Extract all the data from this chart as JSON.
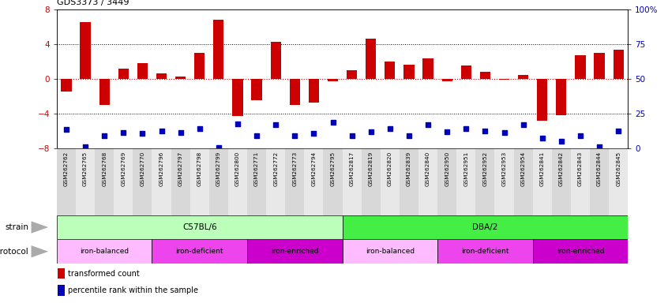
{
  "title": "GDS3373 / 3449",
  "samples": [
    "GSM262762",
    "GSM262765",
    "GSM262768",
    "GSM262769",
    "GSM262770",
    "GSM262796",
    "GSM262797",
    "GSM262798",
    "GSM262799",
    "GSM262800",
    "GSM262771",
    "GSM262772",
    "GSM262773",
    "GSM262794",
    "GSM262795",
    "GSM262817",
    "GSM262819",
    "GSM262820",
    "GSM262839",
    "GSM262840",
    "GSM262950",
    "GSM262951",
    "GSM262952",
    "GSM262953",
    "GSM262954",
    "GSM262841",
    "GSM262842",
    "GSM262843",
    "GSM262844",
    "GSM262845"
  ],
  "bar_values": [
    -1.5,
    6.5,
    -3.0,
    1.2,
    1.8,
    0.6,
    0.3,
    3.0,
    6.8,
    -4.3,
    -2.5,
    4.2,
    -3.0,
    -2.7,
    -0.3,
    1.0,
    4.6,
    2.0,
    1.6,
    2.3,
    -0.3,
    1.5,
    0.8,
    -0.1,
    0.4,
    -4.8,
    -4.2,
    2.7,
    3.0,
    3.3
  ],
  "percentile_y": [
    -5.8,
    -7.8,
    -6.5,
    -6.2,
    -6.3,
    -6.0,
    -6.2,
    -5.7,
    -7.9,
    -5.2,
    -6.5,
    -5.3,
    -6.5,
    -6.3,
    -5.0,
    -6.5,
    -6.1,
    -5.7,
    -6.5,
    -5.3,
    -6.1,
    -5.7,
    -6.0,
    -6.2,
    -5.3,
    -6.8,
    -7.2,
    -6.5,
    -7.8,
    -6.0
  ],
  "bar_color": "#cc0000",
  "dot_color": "#0000bb",
  "ylim": [
    -8,
    8
  ],
  "yticks_left": [
    -8,
    -4,
    0,
    4,
    8
  ],
  "yticks_right_pos": [
    -8,
    -4,
    0,
    4,
    8
  ],
  "yticks_right_labels": [
    "0",
    "25",
    "50",
    "75",
    "100%"
  ],
  "hlines_black": [
    -4,
    4
  ],
  "hline_red": 0,
  "strain_groups": [
    {
      "label": "C57BL/6",
      "start": 0,
      "end": 15,
      "color": "#bbffbb"
    },
    {
      "label": "DBA/2",
      "start": 15,
      "end": 30,
      "color": "#44ee44"
    }
  ],
  "protocol_groups": [
    {
      "label": "iron-balanced",
      "start": 0,
      "end": 5,
      "color": "#ffbbff"
    },
    {
      "label": "iron-deficient",
      "start": 5,
      "end": 10,
      "color": "#ee44ee"
    },
    {
      "label": "iron-enriched",
      "start": 10,
      "end": 15,
      "color": "#cc00cc"
    },
    {
      "label": "iron-balanced",
      "start": 15,
      "end": 20,
      "color": "#ffbbff"
    },
    {
      "label": "iron-deficient",
      "start": 20,
      "end": 25,
      "color": "#ee44ee"
    },
    {
      "label": "iron-enriched",
      "start": 25,
      "end": 30,
      "color": "#cc00cc"
    }
  ],
  "legend": [
    {
      "label": "transformed count",
      "color": "#cc0000"
    },
    {
      "label": "percentile rank within the sample",
      "color": "#0000bb"
    }
  ],
  "strain_label": "strain",
  "protocol_label": "protocol",
  "xlim_plot": [
    -0.5,
    29.5
  ]
}
